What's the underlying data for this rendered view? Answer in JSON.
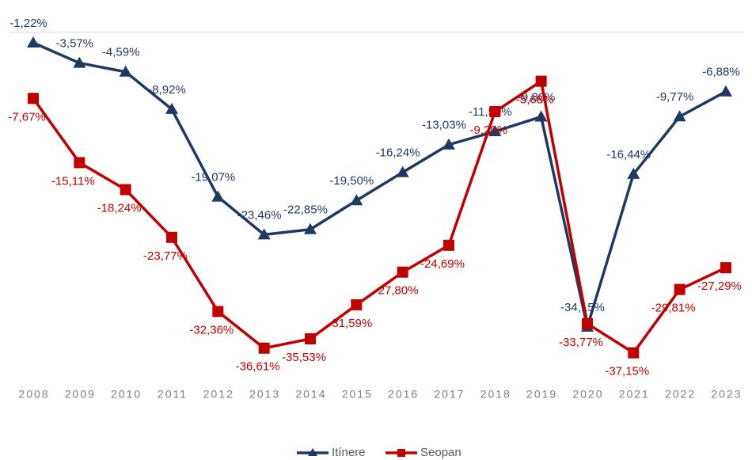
{
  "chart_data": {
    "type": "line",
    "categories": [
      "2008",
      "2009",
      "2010",
      "2011",
      "2012",
      "2013",
      "2014",
      "2015",
      "2016",
      "2017",
      "2018",
      "2019",
      "2020",
      "2021",
      "2022",
      "2023"
    ],
    "series": [
      {
        "name": "Itínere",
        "color": "#1f3864",
        "values": [
          -1.22,
          -3.57,
          -4.59,
          -8.92,
          -19.07,
          -23.46,
          -22.85,
          -19.5,
          -16.24,
          -13.03,
          -11.5,
          -9.8,
          -34.15,
          -16.44,
          -9.77,
          -6.88
        ],
        "value_labels": [
          "-1,22%",
          "-3,57%",
          "-4,59%",
          "-8,92%",
          "-19,07%",
          "-23,46%",
          "-22,85%",
          "-19,50%",
          "-16,24%",
          "-13,03%",
          "-11,50%",
          "-9,80%",
          "-34,15%",
          "-16,44%",
          "-9,77%",
          "-6,88%"
        ]
      },
      {
        "name": "Seopan",
        "color": "#c00000",
        "values": [
          -7.67,
          -15.11,
          -18.24,
          -23.77,
          -32.36,
          -36.61,
          -35.53,
          -31.59,
          -27.8,
          -24.69,
          -9.2,
          -5.68,
          -33.77,
          -37.15,
          -29.81,
          -27.29
        ],
        "value_labels": [
          "-7,67%",
          "-15,11%",
          "-18,24%",
          "-23,77%",
          "-32,36%",
          "-36,61%",
          "-35,53%",
          "-31,59%",
          "-27,80%",
          "-24,69%",
          "-9,20%",
          "-5,68%",
          "-33,77%",
          "-37,15%",
          "-29,81%",
          "-27,29%"
        ]
      }
    ],
    "ylim": [
      -40,
      0
    ],
    "legend": "bottom"
  }
}
